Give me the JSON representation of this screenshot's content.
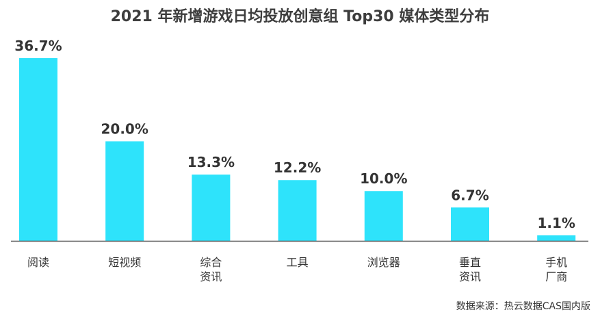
{
  "title": "2021 年新增游戏日均投放创意组 Top30 媒体类型分布",
  "source": "数据来源：热云数据CAS国内版",
  "colors": {
    "bar": "#2ee3fb",
    "axis": "#555555",
    "text": "#333333"
  },
  "chart_data": {
    "type": "bar",
    "title": "2021 年新增游戏日均投放创意组 Top30 媒体类型分布",
    "xlabel": "",
    "ylabel": "",
    "ylim": [
      0,
      36.7
    ],
    "grid": false,
    "categories": [
      "阅读",
      "短视频",
      "综合资讯",
      "工具",
      "浏览器",
      "垂直资讯",
      "手机厂商"
    ],
    "category_lines": [
      [
        "阅读"
      ],
      [
        "短视频"
      ],
      [
        "综合",
        "资讯"
      ],
      [
        "工具"
      ],
      [
        "浏览器"
      ],
      [
        "垂直",
        "资讯"
      ],
      [
        "手机",
        "厂商"
      ]
    ],
    "values": [
      36.7,
      20.0,
      13.3,
      12.2,
      10.0,
      6.7,
      1.1
    ],
    "labels": [
      "36.7%",
      "20.0%",
      "13.3%",
      "12.2%",
      "10.0%",
      "6.7%",
      "1.1%"
    ]
  }
}
